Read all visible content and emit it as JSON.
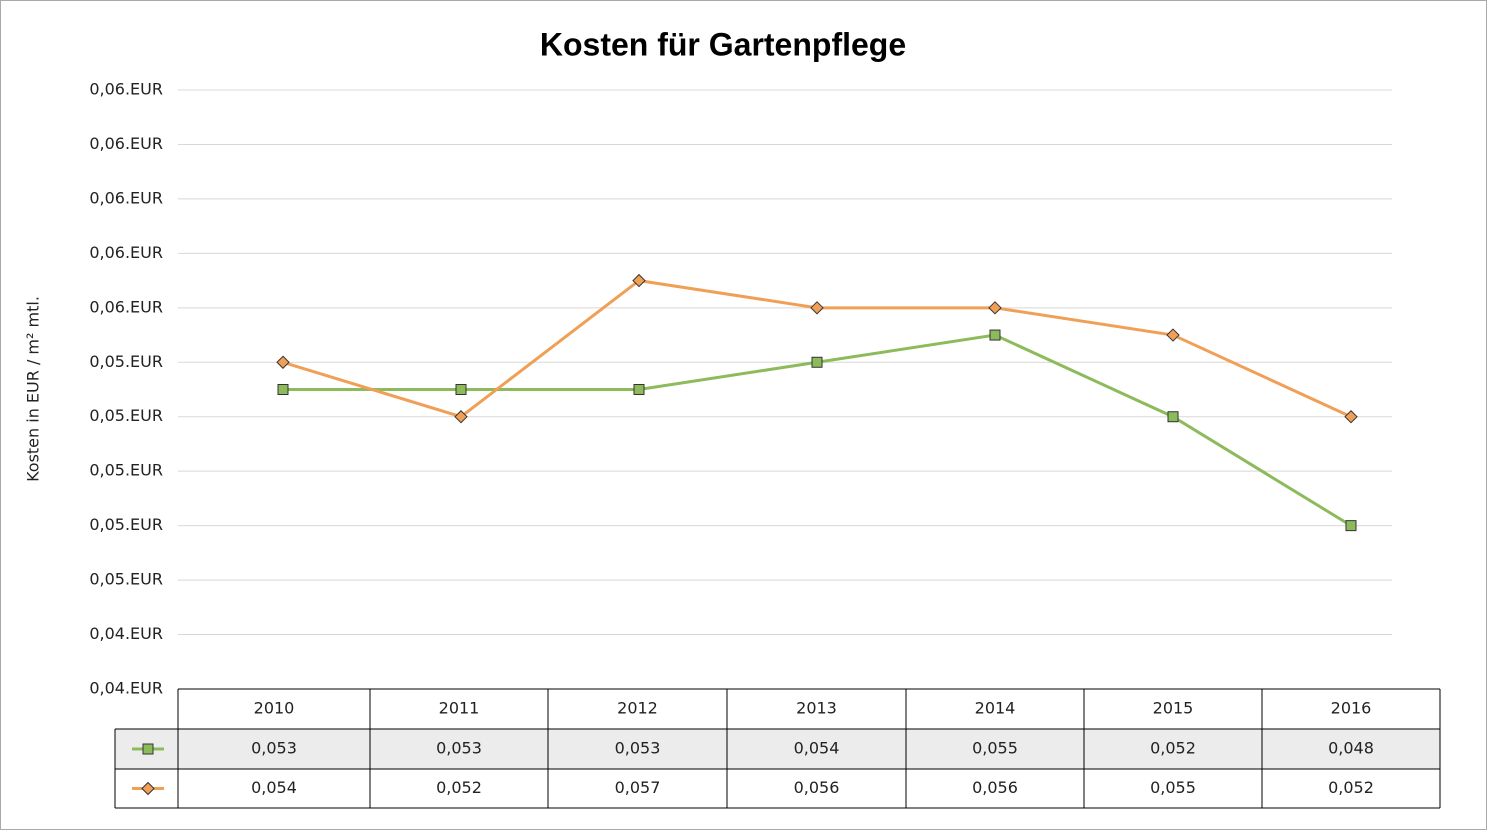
{
  "chart_data": {
    "type": "line",
    "title": "Kosten für Gartenpflege",
    "y_label": "Kosten in EUR / m² mtl.",
    "categories": [
      "2010",
      "2011",
      "2012",
      "2013",
      "2014",
      "2015",
      "2016"
    ],
    "series": [
      {
        "color": "#8dbb5b",
        "marker": "square",
        "values": [
          0.053,
          0.053,
          0.053,
          0.054,
          0.055,
          0.052,
          0.048
        ],
        "value_labels": [
          "0,053",
          "0,053",
          "0,053",
          "0,054",
          "0,055",
          "0,052",
          "0,048"
        ]
      },
      {
        "color": "#f0a056",
        "marker": "diamond",
        "values": [
          0.054,
          0.052,
          0.057,
          0.056,
          0.056,
          0.055,
          0.052
        ],
        "value_labels": [
          "0,054",
          "0,052",
          "0,057",
          "0,056",
          "0,056",
          "0,055",
          "0,052"
        ]
      }
    ],
    "ylim": [
      0.042,
      0.064
    ],
    "yticks": [
      {
        "value": 0.042,
        "label": "0,04.EUR"
      },
      {
        "value": 0.044,
        "label": "0,04.EUR"
      },
      {
        "value": 0.046,
        "label": "0,05.EUR"
      },
      {
        "value": 0.048,
        "label": "0,05.EUR"
      },
      {
        "value": 0.05,
        "label": "0,05.EUR"
      },
      {
        "value": 0.052,
        "label": "0,05.EUR"
      },
      {
        "value": 0.054,
        "label": "0,05.EUR"
      },
      {
        "value": 0.056,
        "label": "0,06.EUR"
      },
      {
        "value": 0.058,
        "label": "0,06.EUR"
      },
      {
        "value": 0.06,
        "label": "0,06.EUR"
      },
      {
        "value": 0.062,
        "label": "0,06.EUR"
      },
      {
        "value": 0.064,
        "label": "0,06.EUR"
      }
    ],
    "grid": true
  }
}
